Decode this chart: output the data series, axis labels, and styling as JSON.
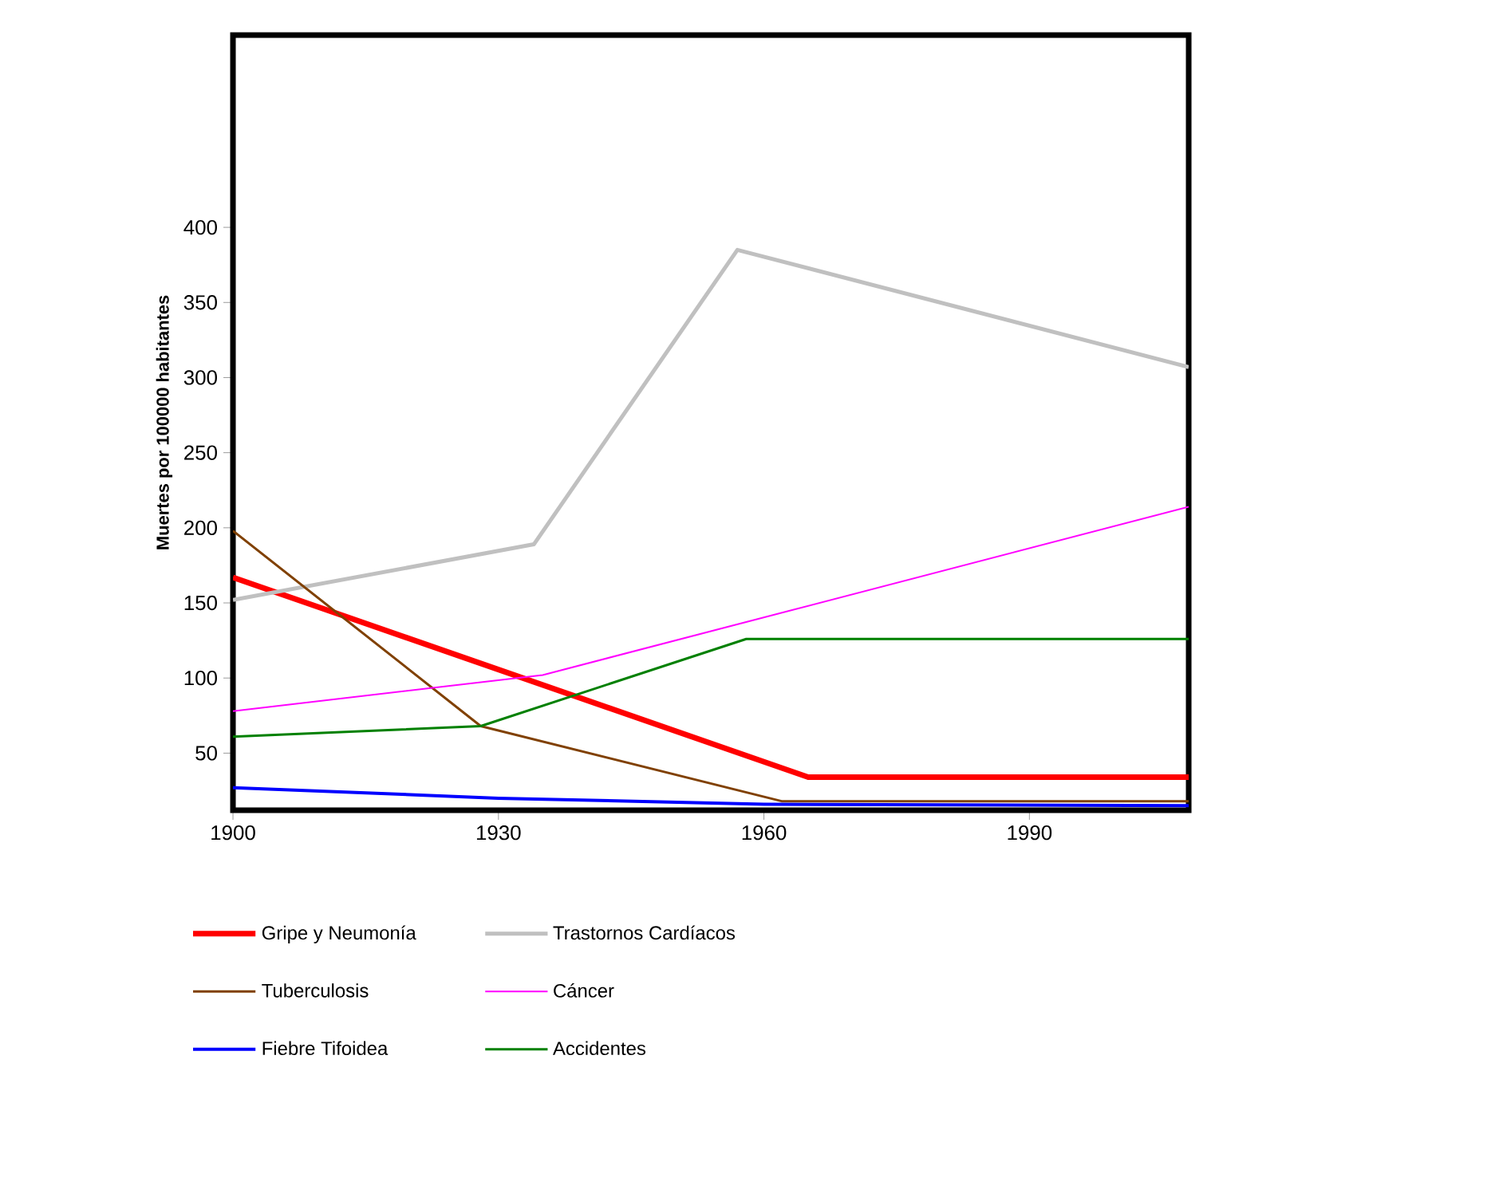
{
  "chart_data": {
    "type": "line",
    "ylabel": "Muertes por 100000 habitantes",
    "xlim": [
      1900,
      2008
    ],
    "xticks": [
      1900,
      1930,
      1960,
      1990
    ],
    "ylim": [
      12,
      528
    ],
    "yticks": [
      50,
      100,
      150,
      200,
      250,
      300,
      350,
      400
    ],
    "legend": "bottom",
    "grid": false,
    "series": [
      {
        "name": "Gripe y Neumonía",
        "color": "#ff0000",
        "x": [
          1900,
          1965,
          2008
        ],
        "values": [
          167,
          34,
          34
        ]
      },
      {
        "name": "Trastornos Cardíacos",
        "color": "#c0c0c0",
        "x": [
          1900,
          1934,
          1957,
          2008
        ],
        "values": [
          152,
          189,
          385,
          307
        ]
      },
      {
        "name": "Tuberculosis",
        "color": "#804000",
        "x": [
          1900,
          1928,
          1962,
          2008
        ],
        "values": [
          198,
          68,
          18,
          18
        ]
      },
      {
        "name": "Cáncer",
        "color": "#ff00ff",
        "x": [
          1900,
          1935,
          2008
        ],
        "values": [
          78,
          102,
          214
        ]
      },
      {
        "name": "Fiebre Tifoidea",
        "color": "#0000ff",
        "x": [
          1900,
          1930,
          1960,
          2008
        ],
        "values": [
          27,
          20,
          16,
          15
        ]
      },
      {
        "name": "Accidentes",
        "color": "#008000",
        "x": [
          1900,
          1928,
          1958,
          2008
        ],
        "values": [
          61,
          68,
          126,
          126
        ]
      }
    ]
  }
}
